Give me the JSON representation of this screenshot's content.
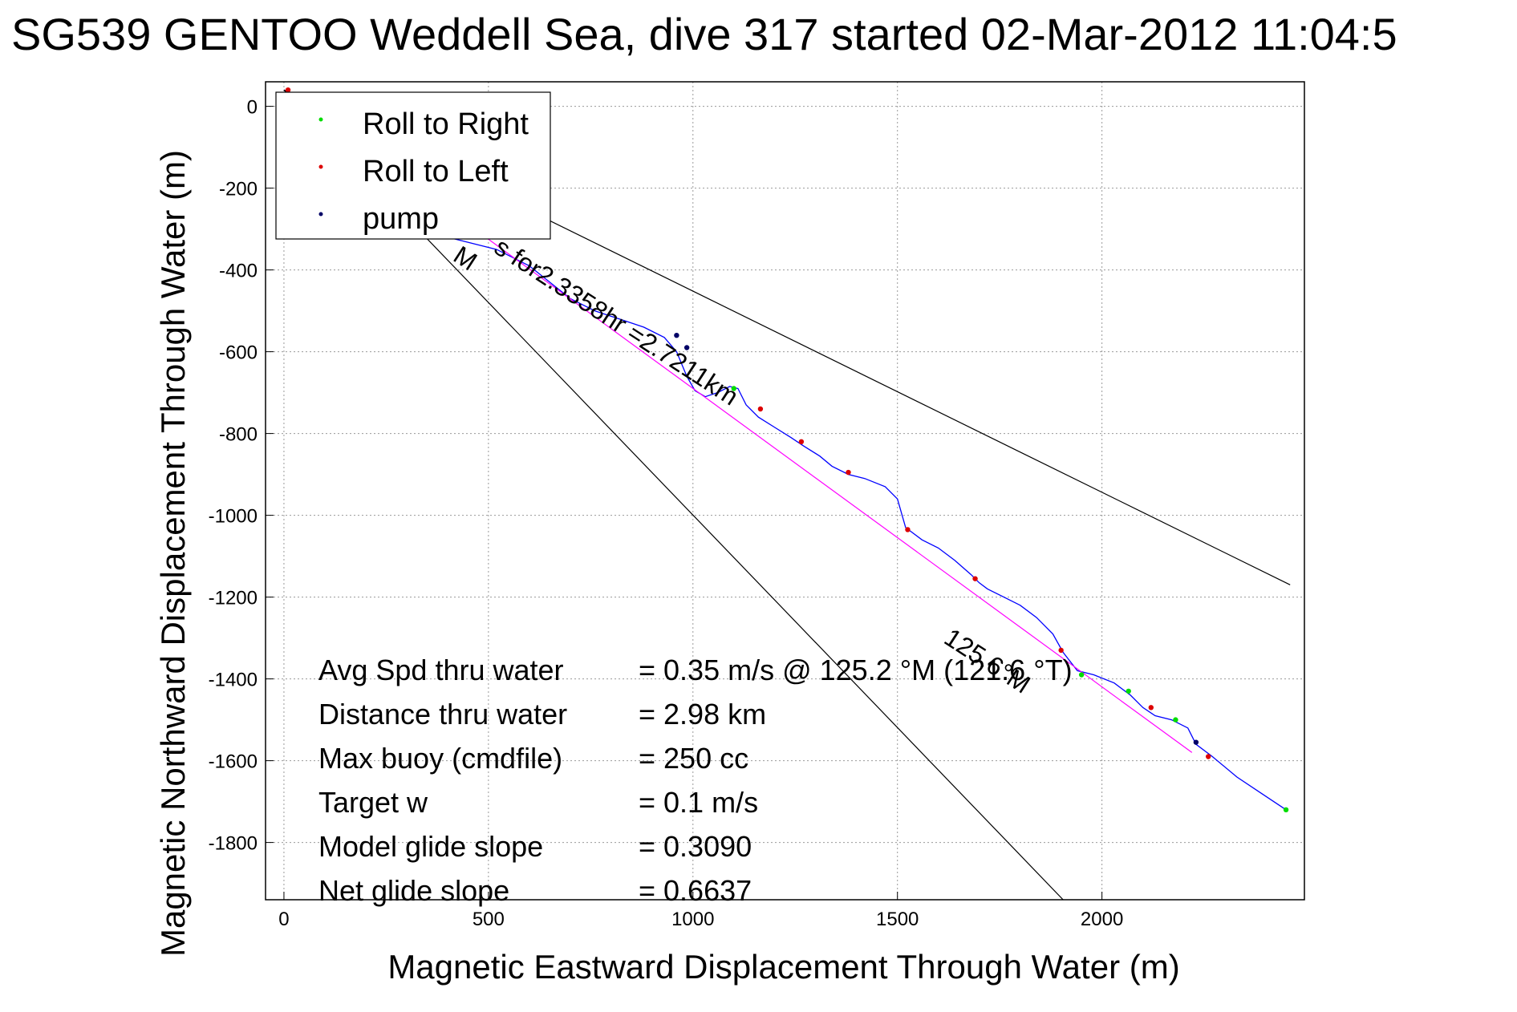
{
  "chart_data": {
    "type": "line",
    "title": "SG539 GENTOO Weddell Sea, dive 317 started 02-Mar-2012 11:04:5",
    "xlabel": "Magnetic Eastward Displacement Through Water (m)",
    "ylabel": "Magnetic Northward Displacement Through Water (m)",
    "xlim": [
      -45,
      2495
    ],
    "ylim": [
      -1940,
      60
    ],
    "x_ticks": [
      0,
      500,
      1000,
      1500,
      2000
    ],
    "x_tick_labels": [
      "0",
      "500",
      "1000",
      "1500",
      "2000"
    ],
    "y_ticks": [
      0,
      -200,
      -400,
      -600,
      -800,
      -1000,
      -1200,
      -1400,
      -1600,
      -1800
    ],
    "y_tick_labels": [
      "0",
      "-200",
      "-400",
      "-600",
      "-800",
      "-1000",
      "-1200",
      "-1400",
      "-1600",
      "-1800"
    ],
    "grid": true,
    "legend_position": "top-left",
    "legend": [
      {
        "label": "Roll to Right",
        "color": "#00dd00"
      },
      {
        "label": "Roll to Left",
        "color": "#dd0000"
      },
      {
        "label": "pump",
        "color": "#000066"
      }
    ],
    "series": [
      {
        "color": "#0000ff",
        "x": [
          0,
          60,
          120,
          200,
          290,
          360,
          440,
          520,
          600,
          650,
          700,
          760,
          820,
          880,
          930,
          960,
          985,
          1005,
          1030,
          1060,
          1090,
          1110,
          1130,
          1160,
          1200,
          1240,
          1270,
          1310,
          1340,
          1380,
          1420,
          1470,
          1500,
          1520,
          1560,
          1600,
          1640,
          1680,
          1700,
          1720,
          1760,
          1800,
          1840,
          1880,
          1905,
          1940,
          1980,
          2030,
          2070,
          2100,
          2130,
          2170,
          2210,
          2230,
          2270,
          2330,
          2390,
          2450
        ],
        "y": [
          40,
          5,
          -60,
          -140,
          -250,
          -310,
          -330,
          -350,
          -390,
          -430,
          -470,
          -500,
          -520,
          -540,
          -565,
          -600,
          -660,
          -695,
          -710,
          -700,
          -685,
          -690,
          -730,
          -760,
          -785,
          -810,
          -830,
          -855,
          -880,
          -900,
          -910,
          -930,
          -960,
          -1030,
          -1060,
          -1080,
          -1110,
          -1145,
          -1165,
          -1180,
          -1200,
          -1220,
          -1250,
          -1290,
          -1335,
          -1380,
          -1390,
          -1410,
          -1440,
          -1470,
          -1490,
          -1500,
          -1520,
          -1560,
          -1590,
          -1640,
          -1680,
          -1720
        ]
      },
      {
        "color": "#ff00ff",
        "x": [
          0,
          2220
        ],
        "y": [
          40,
          -1580
        ]
      },
      {
        "color": "#000000",
        "x": [
          0,
          2460
        ],
        "y": [
          40,
          -1170
        ]
      },
      {
        "color": "#000000",
        "x": [
          0,
          1905
        ],
        "y": [
          40,
          -1940
        ]
      }
    ],
    "markers": {
      "roll_right": {
        "color": "#00dd00",
        "x": [
          1100,
          1950,
          2065,
          2180,
          2450
        ],
        "y": [
          -690,
          -1390,
          -1430,
          -1500,
          -1720
        ]
      },
      "roll_left": {
        "color": "#dd0000",
        "x": [
          10,
          1165,
          1265,
          1380,
          1525,
          1690,
          1900,
          2120,
          2260
        ],
        "y": [
          40,
          -740,
          -820,
          -895,
          -1035,
          -1155,
          -1330,
          -1470,
          -1590
        ]
      },
      "pump": {
        "color": "#000066",
        "x": [
          960,
          985,
          2230
        ],
        "y": [
          -560,
          -590,
          -1555
        ]
      }
    },
    "annotations": [
      {
        "text": "M",
        "x": 410,
        "y": -375,
        "rotation": 33
      },
      {
        "text": "s for2.3358hr =2.7211km",
        "x": 510,
        "y": -355,
        "rotation": 33
      },
      {
        "text": "125.6°M",
        "x": 1610,
        "y": -1310,
        "rotation": 33
      }
    ],
    "stats": [
      {
        "label": "Avg Spd thru water",
        "value": "=  0.35 m/s @ 125.2  °M (121.6  °T)"
      },
      {
        "label": "Distance thru water",
        "value": "=  2.98 km"
      },
      {
        "label": "Max buoy (cmdfile)",
        "value": "= 250 cc"
      },
      {
        "label": "Target w",
        "value": "= 0.1 m/s"
      },
      {
        "label": "Model glide slope",
        "value": "= 0.3090"
      },
      {
        "label": "Net glide slope",
        "value": "= 0.6637"
      }
    ]
  }
}
